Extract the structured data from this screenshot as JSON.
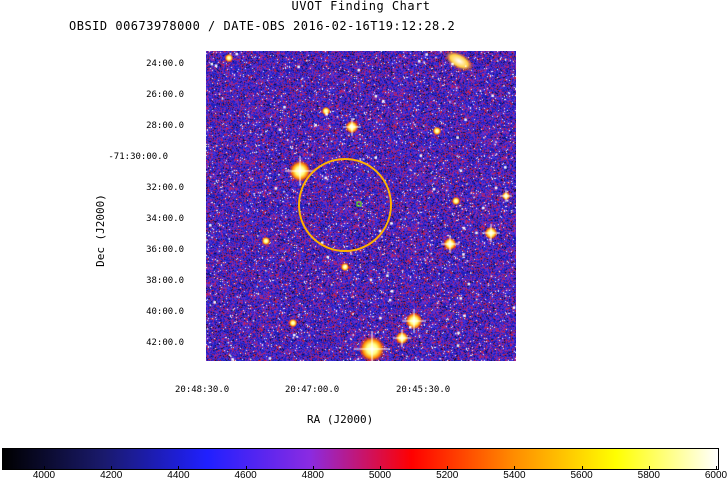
{
  "header": {
    "title": "UVOT Finding Chart",
    "subtitle": "OBSID 00673978000 / DATE-OBS 2016-02-16T19:12:28.2"
  },
  "axes": {
    "ylabel": "Dec  (J2000)",
    "xlabel": "RA  (J2000)",
    "dec_ticks": [
      "24:00.0",
      "26:00.0",
      "28:00.0",
      "-71:30:00.0",
      "32:00.0",
      "34:00.0",
      "36:00.0",
      "38:00.0",
      "40:00.0",
      "42:00.0"
    ],
    "ra_ticks": [
      "20:48:30.0",
      "20:47:00.0",
      "20:45:30.0"
    ]
  },
  "colorbar": {
    "ticks": [
      "4000",
      "4200",
      "4400",
      "4600",
      "4800",
      "5000",
      "5200",
      "5400",
      "5600",
      "5800",
      "6000"
    ],
    "stops": [
      "#000000",
      "#1a1a6e",
      "#2020ff",
      "#8a2be2",
      "#ff0000",
      "#ff8c00",
      "#ffff00",
      "#ffffff"
    ]
  },
  "target_circle": {
    "color": "#ffb000"
  }
}
